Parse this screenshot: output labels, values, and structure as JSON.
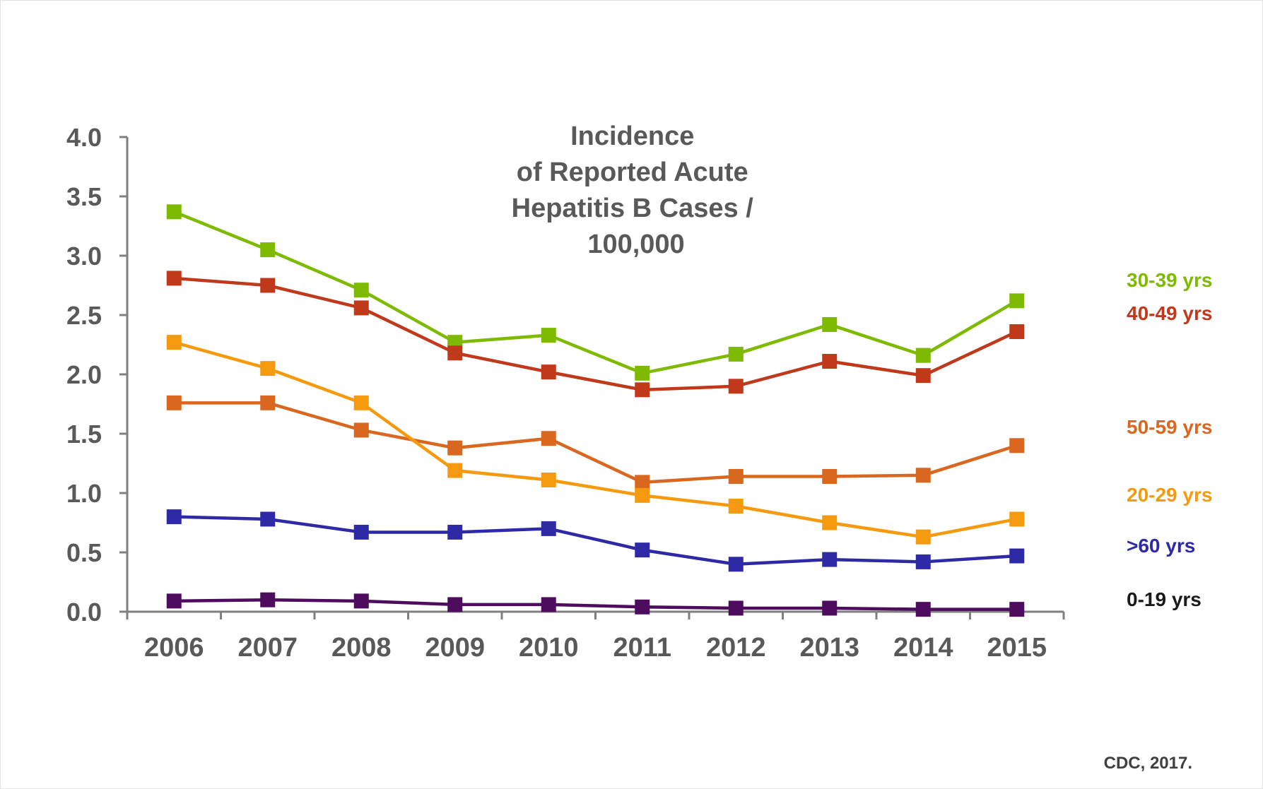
{
  "chart_data": {
    "type": "line",
    "title_lines": [
      "Incidence",
      "of Reported Acute",
      "Hepatitis B Cases /",
      "100,000"
    ],
    "categories": [
      "2006",
      "2007",
      "2008",
      "2009",
      "2010",
      "2011",
      "2012",
      "2013",
      "2014",
      "2015"
    ],
    "yticks": [
      "0.0",
      "0.5",
      "1.0",
      "1.5",
      "2.0",
      "2.5",
      "3.0",
      "3.5",
      "4.0"
    ],
    "ylim": [
      0,
      4
    ],
    "xlabel": "",
    "ylabel": "",
    "grid": false,
    "series": [
      {
        "name": "30-39 yrs",
        "color": "#7dba00",
        "values": [
          3.37,
          3.05,
          2.71,
          2.27,
          2.33,
          2.01,
          2.17,
          2.42,
          2.16,
          2.62
        ]
      },
      {
        "name": "40-49 yrs",
        "color": "#c0391b",
        "values": [
          2.81,
          2.75,
          2.56,
          2.18,
          2.02,
          1.87,
          1.9,
          2.11,
          1.99,
          2.36
        ]
      },
      {
        "name": "50-59 yrs",
        "color": "#d9671f",
        "values": [
          1.76,
          1.76,
          1.53,
          1.38,
          1.46,
          1.09,
          1.14,
          1.14,
          1.15,
          1.4
        ]
      },
      {
        "name": "20-29 yrs",
        "color": "#f59a0f",
        "values": [
          2.27,
          2.05,
          1.76,
          1.19,
          1.11,
          0.98,
          0.89,
          0.75,
          0.63,
          0.78
        ]
      },
      {
        "name": ">60  yrs",
        "color": "#2e2aa6",
        "values": [
          0.8,
          0.78,
          0.67,
          0.67,
          0.7,
          0.52,
          0.4,
          0.44,
          0.42,
          0.47
        ]
      },
      {
        "name": "0-19 yrs",
        "color": "#4e0c5e",
        "values": [
          0.09,
          0.1,
          0.09,
          0.06,
          0.06,
          0.04,
          0.03,
          0.03,
          0.02,
          0.02
        ]
      }
    ],
    "label_colors": [
      "#7dba00",
      "#c0391b",
      "#d9671f",
      "#f59a0f",
      "#2e2aa6",
      "#1a1a1a"
    ]
  },
  "source": "CDC, 2017."
}
